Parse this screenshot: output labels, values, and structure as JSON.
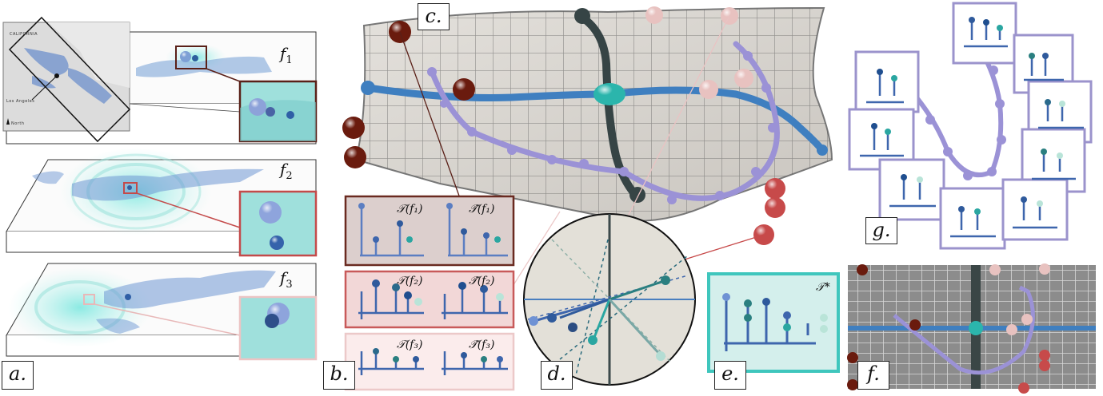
{
  "panels": {
    "a": {
      "tag": "a.",
      "layers": [
        "f",
        "f",
        "f"
      ],
      "subs": [
        "1",
        "2",
        "3"
      ]
    },
    "b": {
      "tag": "b.",
      "rows": [
        {
          "t": "𝒯(f₁)",
          "th": "𝒯̂(f₁)"
        },
        {
          "t": "𝒯(f₂)",
          "th": "𝒯̂(f₂)"
        },
        {
          "t": "𝒯(f₃)",
          "th": "𝒯̂(f₃)"
        }
      ]
    },
    "c": {
      "tag": "c."
    },
    "d": {
      "tag": "d."
    },
    "e": {
      "tag": "e.",
      "label": "𝒯*"
    },
    "f": {
      "tag": "f."
    },
    "g": {
      "tag": "g."
    }
  },
  "map": {
    "state": "CALIFORNIA",
    "city": "Los Angeles",
    "north": "North"
  },
  "colors": {
    "geodesic": "#6f9fd4",
    "lavender": "#9a93d6",
    "teal": "#29b3a8",
    "dark_red": "#6a1b0e",
    "pink": "#e8c8c6",
    "red": "#c74a4a",
    "frame_b1": "#6a2a20",
    "frame_b2": "#c85a5a",
    "frame_b3": "#ecc9c9",
    "frame_e": "#3fc6bd",
    "frame_g": "#9b93cc"
  }
}
